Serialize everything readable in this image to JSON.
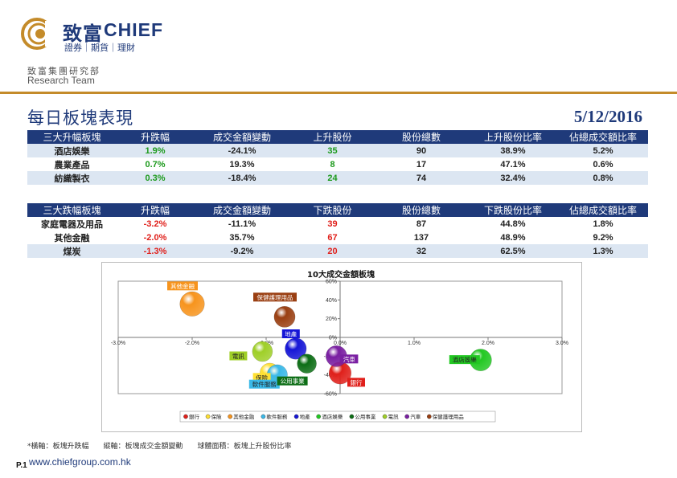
{
  "header": {
    "brand_cn": "致富",
    "brand_en": "CHIEF",
    "brand_sub": "證券｜期貨｜理財",
    "dept_cn": "致富集團研究部",
    "dept_en": "Research Team",
    "accent_color": "#c48b2a",
    "brand_color": "#1f3a7a"
  },
  "page": {
    "title": "每日板塊表現",
    "date": "5/12/2016"
  },
  "top_table": {
    "headers": [
      "三大升幅板塊",
      "升跌幅",
      "成交金額變動",
      "上升股份",
      "股份總數",
      "上升股份比率",
      "佔總成交額比率"
    ],
    "rows": [
      [
        "酒店娛樂",
        "1.9%",
        "-24.1%",
        "35",
        "90",
        "38.9%",
        "5.2%"
      ],
      [
        "農業產品",
        "0.7%",
        "19.3%",
        "8",
        "17",
        "47.1%",
        "0.6%"
      ],
      [
        "紡織製衣",
        "0.3%",
        "-18.4%",
        "24",
        "74",
        "32.4%",
        "0.8%"
      ]
    ]
  },
  "bottom_table": {
    "headers": [
      "三大跌幅板塊",
      "升跌幅",
      "成交金額變動",
      "下跌股份",
      "股份總數",
      "下跌股份比率",
      "佔總成交額比率"
    ],
    "rows": [
      [
        "家庭電器及用品",
        "-3.2%",
        "-11.1%",
        "39",
        "87",
        "44.8%",
        "1.8%"
      ],
      [
        "其他金融",
        "-2.0%",
        "35.7%",
        "67",
        "137",
        "48.9%",
        "9.2%"
      ],
      [
        "煤炭",
        "-1.3%",
        "-9.2%",
        "20",
        "32",
        "62.5%",
        "1.3%"
      ]
    ]
  },
  "chart_data": {
    "type": "scatter",
    "title": "10大成交金額板塊",
    "xlim": [
      -3.0,
      3.0
    ],
    "ylim": [
      -60,
      60
    ],
    "x_ticks": [
      "-3.0%",
      "-2.0%",
      "-1.0%",
      "0.0%",
      "1.0%",
      "2.0%",
      "3.0%"
    ],
    "y_ticks": [
      "60%",
      "40%",
      "20%",
      "0%",
      "-20%",
      "-40%",
      "-60%"
    ],
    "grid": false,
    "legend_position": "bottom",
    "series": [
      {
        "name": "銀行",
        "x": 0.0,
        "y": -38,
        "size": 40,
        "color": "#e0201b"
      },
      {
        "name": "保險",
        "x": -0.95,
        "y": -38,
        "size": 32,
        "color": "#ffe033"
      },
      {
        "name": "其他金融",
        "x": -2.0,
        "y": 35.7,
        "size": 49,
        "color": "#f7941d"
      },
      {
        "name": "軟件服務",
        "x": -0.85,
        "y": -40,
        "size": 34,
        "color": "#3bb9e8"
      },
      {
        "name": "地產",
        "x": -0.6,
        "y": -12,
        "size": 37,
        "color": "#1616d6"
      },
      {
        "name": "酒店娛樂",
        "x": 1.9,
        "y": -24.1,
        "size": 38.9,
        "color": "#22c822"
      },
      {
        "name": "公用事業",
        "x": -0.45,
        "y": -28,
        "size": 30,
        "color": "#0d6e16"
      },
      {
        "name": "電訊",
        "x": -1.05,
        "y": -15,
        "size": 33,
        "color": "#9fcf28"
      },
      {
        "name": "汽車",
        "x": -0.05,
        "y": -20,
        "size": 36,
        "color": "#7a1fa2"
      },
      {
        "name": "保健護理用品",
        "x": -0.75,
        "y": 22,
        "size": 36,
        "color": "#9a3f12"
      }
    ],
    "labels_on_chart": [
      {
        "text": "其他金融",
        "color": "#f7941d"
      },
      {
        "text": "保健護理用品",
        "color": "#9a3f12"
      },
      {
        "text": "地產",
        "color": "#1616d6"
      },
      {
        "text": "汽車",
        "color": "#7a1fa2"
      },
      {
        "text": "電訊",
        "color": "#9fcf28"
      },
      {
        "text": "保險",
        "color": "#ffe033"
      },
      {
        "text": "酒店娛樂",
        "color": "#22c822"
      },
      {
        "text": "銀行",
        "color": "#e0201b"
      },
      {
        "text": "軟件服務",
        "color": "#3bb9e8"
      },
      {
        "text": "公用事業",
        "color": "#0d6e16"
      }
    ]
  },
  "footer": {
    "note": "*橫軸：板塊升跌幅　　縱軸：板塊成交金額變動　　球體面積：板塊上升股份比率",
    "page_no": "P.1",
    "website": "www.chiefgroup.com.hk"
  }
}
